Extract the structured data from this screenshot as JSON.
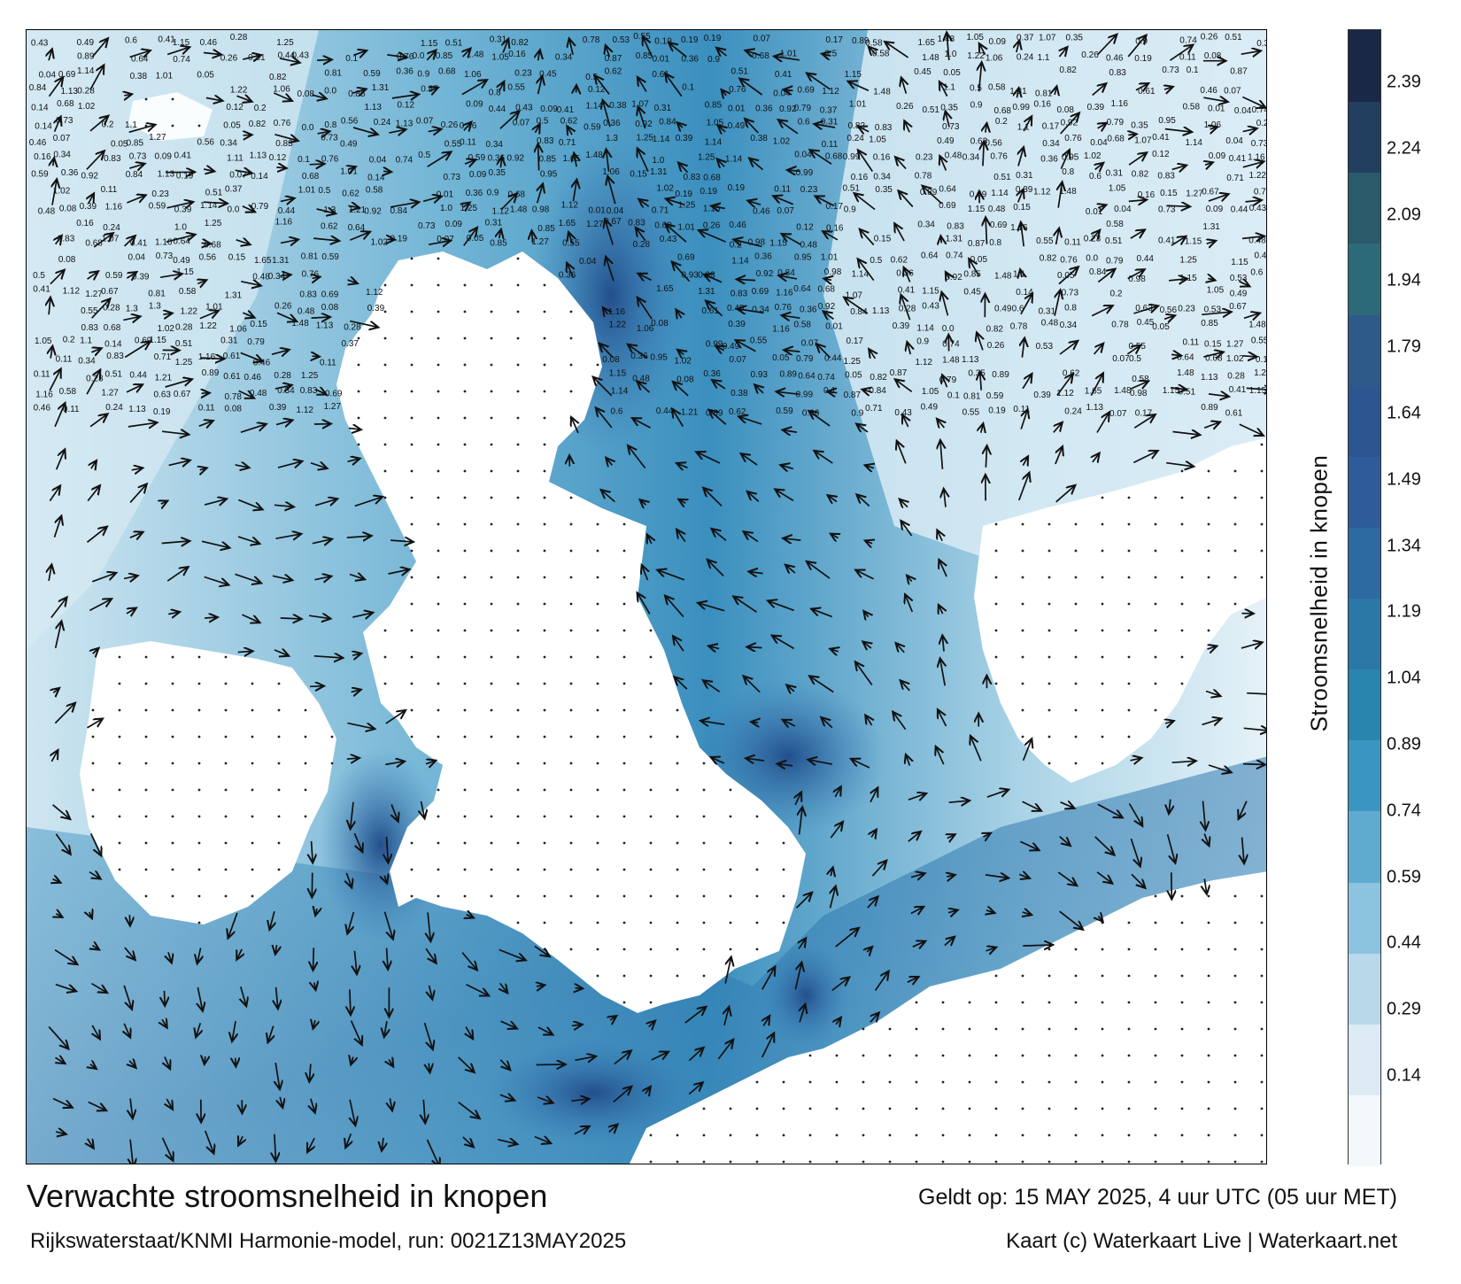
{
  "map": {
    "title": "Verwachte stroomsnelheid in knopen",
    "validity": "Geldt op: 15 MAY 2025, 4 uur UTC (05 uur MET)",
    "model": "Rijkswaterstaat/KNMI Harmonie-model, run: 0021Z13MAY2025",
    "credit": "Kaart (c) Waterkaart Live | Waterkaart.net",
    "legend_title": "Stroomsnelheid in knopen",
    "legend_ticks": [
      "2.39",
      "2.24",
      "2.09",
      "1.94",
      "1.79",
      "1.64",
      "1.49",
      "1.34",
      "1.19",
      "1.04",
      "0.89",
      "0.74",
      "0.59",
      "0.44",
      "0.29",
      "0.14"
    ],
    "legend_colors": [
      "#f3f8fb",
      "#dcebf3",
      "#b8d9e9",
      "#8cc3de",
      "#5fabd0",
      "#3a96c0",
      "#2a85ae",
      "#2b78a6",
      "#2e6aa2",
      "#2e5c9b",
      "#2d5590",
      "#2e5a8a",
      "#2c6a7a",
      "#2b5a6a",
      "#233f60",
      "#1a2848"
    ],
    "value_labels": [
      "0.43",
      "0.33",
      "0.13",
      "0.16",
      "0.09",
      "0.49",
      "0.1",
      "0.2",
      "0.22",
      "0.25",
      "0.26",
      "0.5",
      "0.14",
      "0.05",
      "0.17",
      "0.18",
      "0.21",
      "0.28",
      "0.12",
      "0.07",
      "0.19",
      "0.11",
      "0.32",
      "0.06",
      "0.34",
      "0.24",
      "0.15",
      "0.08",
      "0.23",
      "0.27",
      "0.29",
      "0.31",
      "0.35",
      "0.37",
      "0.41",
      "0.44",
      "0.47",
      "0.52",
      "0.55",
      "0.56",
      "0.6",
      "0.63",
      "0.67",
      "0.7",
      "0.72",
      "0.76",
      "0.78",
      "0.81",
      "0.83",
      "0.87",
      "0.91",
      "0.94",
      "0.98",
      "1.0",
      "1.05",
      "1.1",
      "1.13",
      "1.17",
      "1.2",
      "1.27",
      "1.31",
      "1.48",
      "1.65",
      "0.01",
      "0.02",
      "0.03",
      "0.04",
      "0.0",
      "0.36",
      "0.38",
      "0.39",
      "0.4",
      "0.42",
      "0.45",
      "0.46",
      "0.48",
      "0.51",
      "0.53",
      "0.54",
      "0.57",
      "0.58",
      "0.59",
      "0.61",
      "0.62",
      "0.64",
      "0.65",
      "0.66",
      "0.68",
      "0.69",
      "0.71",
      "0.73",
      "0.74",
      "0.75",
      "0.77",
      "0.79",
      "0.8",
      "0.82",
      "0.84",
      "0.85",
      "0.86",
      "0.88",
      "0.89",
      "0.9",
      "0.92",
      "0.93",
      "0.95",
      "0.96",
      "0.97",
      "0.99",
      "1.01",
      "1.02",
      "1.06",
      "1.07",
      "1.08",
      "1.09",
      "1.11",
      "1.12",
      "1.14",
      "1.15",
      "1.16",
      "1.18",
      "1.19",
      "1.21",
      "1.22",
      "1.25",
      "1.3"
    ]
  }
}
